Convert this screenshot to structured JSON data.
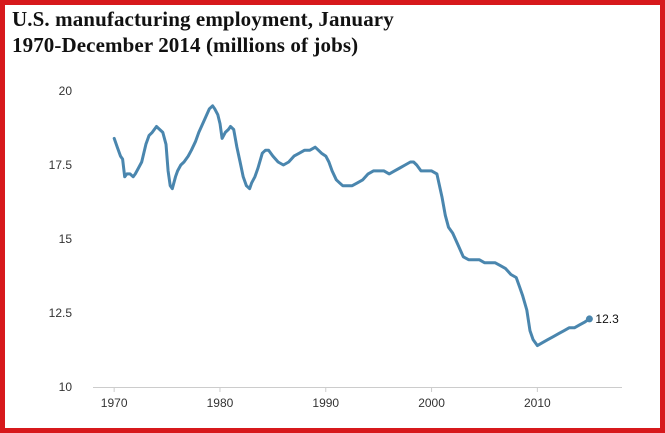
{
  "chart_data": {
    "type": "line",
    "title": "U.S. manufacturing employment, January 1970-December 2014 (millions of jobs)",
    "title_line1": "U.S. manufacturing employment, January",
    "title_line2": "1970-December 2014 (millions of jobs)",
    "xlabel": "",
    "ylabel": "",
    "xlim": [
      1968,
      2018
    ],
    "ylim": [
      10,
      20
    ],
    "x_ticks": [
      "1970",
      "1980",
      "1990",
      "2000",
      "2010"
    ],
    "y_ticks": [
      "20",
      "17.5",
      "15",
      "12.5",
      "10"
    ],
    "grid": false,
    "line_color": "#4a86ae",
    "frame_color": "#d7191c",
    "end_label": "12.3",
    "series": [
      {
        "x": [
          1970.0,
          1970.3,
          1970.6,
          1970.8,
          1971.0,
          1971.2,
          1971.5,
          1971.8,
          1972.0,
          1972.3,
          1972.6,
          1973.0,
          1973.3,
          1973.6,
          1974.0,
          1974.3,
          1974.6,
          1974.9,
          1975.1,
          1975.3,
          1975.5,
          1975.8,
          1976.0,
          1976.3,
          1976.6,
          1977.0,
          1977.3,
          1977.7,
          1978.0,
          1978.5,
          1979.0,
          1979.3,
          1979.5,
          1979.8,
          1980.0,
          1980.2,
          1980.5,
          1980.8,
          1981.0,
          1981.3,
          1981.6,
          1981.9,
          1982.2,
          1982.5,
          1982.8,
          1983.0,
          1983.3,
          1983.6,
          1984.0,
          1984.3,
          1984.6,
          1985.0,
          1985.5,
          1986.0,
          1986.5,
          1987.0,
          1987.5,
          1988.0,
          1988.5,
          1989.0,
          1989.3,
          1989.6,
          1990.0,
          1990.3,
          1990.6,
          1991.0,
          1991.3,
          1991.6,
          1992.0,
          1992.5,
          1993.0,
          1993.5,
          1994.0,
          1994.5,
          1995.0,
          1995.5,
          1996.0,
          1996.5,
          1997.0,
          1997.5,
          1998.0,
          1998.3,
          1998.6,
          1999.0,
          1999.5,
          2000.0,
          2000.5,
          2001.0,
          2001.3,
          2001.6,
          2002.0,
          2002.5,
          2003.0,
          2003.5,
          2004.0,
          2004.5,
          2005.0,
          2005.5,
          2006.0,
          2006.5,
          2007.0,
          2007.5,
          2008.0,
          2008.3,
          2008.6,
          2009.0,
          2009.3,
          2009.6,
          2010.0,
          2010.5,
          2011.0,
          2011.5,
          2012.0,
          2012.5,
          2013.0,
          2013.5,
          2014.0,
          2014.5,
          2014.92
        ],
        "y": [
          18.4,
          18.1,
          17.8,
          17.7,
          17.1,
          17.2,
          17.2,
          17.1,
          17.2,
          17.4,
          17.6,
          18.2,
          18.5,
          18.6,
          18.8,
          18.7,
          18.6,
          18.2,
          17.3,
          16.8,
          16.7,
          17.1,
          17.3,
          17.5,
          17.6,
          17.8,
          18.0,
          18.3,
          18.6,
          19.0,
          19.4,
          19.5,
          19.4,
          19.2,
          18.9,
          18.4,
          18.6,
          18.7,
          18.8,
          18.7,
          18.1,
          17.6,
          17.1,
          16.8,
          16.7,
          16.9,
          17.1,
          17.4,
          17.9,
          18.0,
          18.0,
          17.8,
          17.6,
          17.5,
          17.6,
          17.8,
          17.9,
          18.0,
          18.0,
          18.1,
          18.0,
          17.9,
          17.8,
          17.6,
          17.3,
          17.0,
          16.9,
          16.8,
          16.8,
          16.8,
          16.9,
          17.0,
          17.2,
          17.3,
          17.3,
          17.3,
          17.2,
          17.3,
          17.4,
          17.5,
          17.6,
          17.6,
          17.5,
          17.3,
          17.3,
          17.3,
          17.2,
          16.4,
          15.8,
          15.4,
          15.2,
          14.8,
          14.4,
          14.3,
          14.3,
          14.3,
          14.2,
          14.2,
          14.2,
          14.1,
          14.0,
          13.8,
          13.7,
          13.4,
          13.1,
          12.6,
          11.9,
          11.6,
          11.4,
          11.5,
          11.6,
          11.7,
          11.8,
          11.9,
          12.0,
          12.0,
          12.1,
          12.2,
          12.3
        ]
      }
    ]
  }
}
